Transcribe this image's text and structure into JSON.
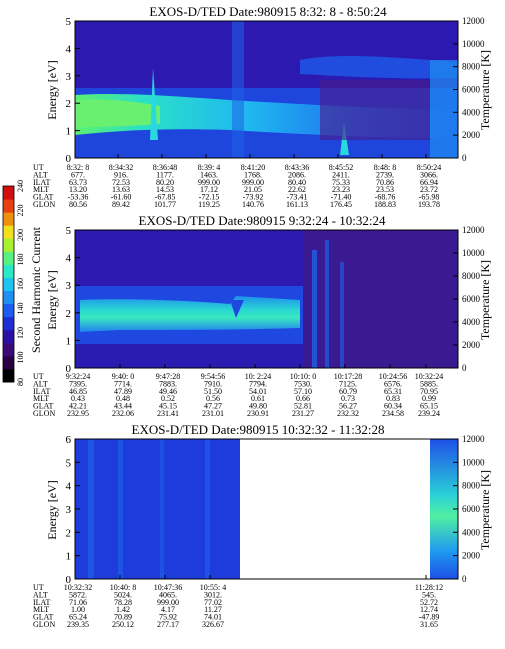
{
  "colorbar": {
    "label": "Second Harmonic Current",
    "ticks": [
      80,
      100,
      120,
      140,
      160,
      180,
      200,
      220,
      240
    ],
    "colors": [
      "#000000",
      "#2a0044",
      "#3c0a78",
      "#2a10a6",
      "#1f2ed2",
      "#1e5cf0",
      "#1f8ff2",
      "#1fc3f0",
      "#2ae8c8",
      "#58f080",
      "#a8f030",
      "#f0e020",
      "#f09010",
      "#e84010",
      "#d01010"
    ]
  },
  "chart_data": [
    {
      "type": "heatmap",
      "title": "EXOS-D/TED   Date:980915   8:32: 8 - 8:50:24",
      "ylabel": "Energy [eV]",
      "y2label": "Temperature [K]",
      "ylim": [
        0,
        5
      ],
      "y2lim": [
        0,
        12000
      ],
      "yticks": [
        0,
        1,
        2,
        3,
        4,
        5
      ],
      "y2ticks": [
        0,
        2000,
        4000,
        6000,
        8000,
        10000,
        12000
      ],
      "row_labels": [
        "UT",
        "ALT",
        "ILAT",
        "MLT",
        "GLAT",
        "GLON"
      ],
      "columns": [
        [
          "8:32: 8",
          "677.",
          "63.73",
          "13.20",
          "-53.36",
          "80.56"
        ],
        [
          "8:34:32",
          "916.",
          "72.53",
          "13.63",
          "-61.60",
          "89.42"
        ],
        [
          "8:36:48",
          "1177.",
          "80.20",
          "14.53",
          "-67.85",
          "101.77"
        ],
        [
          "8:39: 4",
          "1463.",
          "999.00",
          "17.12",
          "-72.15",
          "119.25"
        ],
        [
          "8:41:20",
          "1768.",
          "999.00",
          "21.05",
          "-73.92",
          "140.76"
        ],
        [
          "8:43:36",
          "2086.",
          "80.40",
          "22.62",
          "-73.41",
          "161.13"
        ],
        [
          "8:45:52",
          "2411.",
          "75.33",
          "23.23",
          "-71.40",
          "176.45"
        ],
        [
          "8:48: 8",
          "2739.",
          "70.86",
          "23.53",
          "-68.76",
          "188.83"
        ],
        [
          "8:50:24",
          "3066.",
          "66.94",
          "23.72",
          "-65.98",
          "193.78"
        ]
      ]
    },
    {
      "type": "heatmap",
      "title": "EXOS-D/TED   Date:980915   9:32:24 - 10:32:24",
      "ylabel": "Energy [eV]",
      "y2label": "Temperature [K]",
      "ylim": [
        0,
        5
      ],
      "y2lim": [
        0,
        12000
      ],
      "yticks": [
        0,
        1,
        2,
        3,
        4,
        5
      ],
      "y2ticks": [
        0,
        2000,
        4000,
        6000,
        8000,
        10000,
        12000
      ],
      "row_labels": [
        "UT",
        "ALT",
        "ILAT",
        "MLT",
        "GLAT",
        "GLON"
      ],
      "columns": [
        [
          "9:32:24",
          "7395.",
          "46.85",
          "0.43",
          "42.21",
          "232.95"
        ],
        [
          "9:40: 0",
          "7714.",
          "47.89",
          "0.48",
          "43.44",
          "232.06"
        ],
        [
          "9:47:28",
          "7883.",
          "49.46",
          "0.52",
          "45.15",
          "231.41"
        ],
        [
          "9:54:56",
          "7910.",
          "51.50",
          "0.56",
          "47.27",
          "231.01"
        ],
        [
          "10: 2:24",
          "7794.",
          "54.01",
          "0.61",
          "49.80",
          "230.91"
        ],
        [
          "10:10: 0",
          "7530.",
          "57.10",
          "0.66",
          "52.81",
          "231.27"
        ],
        [
          "10:17:28",
          "7125.",
          "60.79",
          "0.73",
          "56.27",
          "232.32"
        ],
        [
          "10:24:56",
          "6576.",
          "65.31",
          "0.83",
          "60.34",
          "234.58"
        ],
        [
          "10:32:24",
          "5885.",
          "70.95",
          "0.99",
          "65.15",
          "239.24"
        ]
      ]
    },
    {
      "type": "heatmap",
      "title": "EXOS-D/TED   Date:980915   10:32:32 - 11:32:28",
      "ylabel": "Energy [eV]",
      "y2label": "Temperature [K]",
      "ylim": [
        0,
        6
      ],
      "y2lim": [
        0,
        12000
      ],
      "yticks": [
        0,
        1,
        2,
        3,
        4,
        5,
        6
      ],
      "y2ticks": [
        0,
        2000,
        4000,
        6000,
        8000,
        10000,
        12000
      ],
      "row_labels": [
        "UT",
        "ALT",
        "ILAT",
        "MLT",
        "GLAT",
        "GLON"
      ],
      "columns": [
        [
          "10:32:32",
          "5872.",
          "71.06",
          "1.00",
          "65.24",
          "239.35"
        ],
        [
          "10:40: 8",
          "5024.",
          "78.28",
          "1.42",
          "70.89",
          "250.12"
        ],
        [
          "10:47:36",
          "4065.",
          "999.00",
          "4.17",
          "75.92",
          "277.17"
        ],
        [
          "10:55: 4",
          "3012.",
          "77.02",
          "11.27",
          "74.01",
          "326.67"
        ],
        [
          "11:28:12",
          "545.",
          "52.72",
          "12.74",
          "-47.89",
          "31.65"
        ]
      ]
    }
  ]
}
